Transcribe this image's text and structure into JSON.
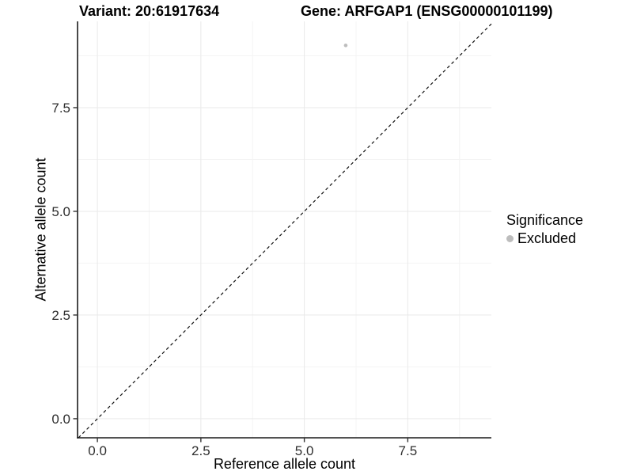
{
  "titles": {
    "variant": "Variant: 20:61917634",
    "gene": "Gene: ARFGAP1 (ENSG00000101199)"
  },
  "legend": {
    "title": "Significance",
    "items": [
      {
        "label": "Excluded",
        "color": "#bdbdbd"
      }
    ]
  },
  "chart_data": {
    "type": "scatter",
    "title": "Variant: 20:61917634   Gene: ARFGAP1 (ENSG00000101199)",
    "xlabel": "Reference allele count",
    "ylabel": "Alternative allele count",
    "points": [
      {
        "x": 6,
        "y": 9,
        "series": "Excluded"
      }
    ],
    "series": [
      {
        "name": "Excluded",
        "color": "#bdbdbd"
      }
    ],
    "reference_line": {
      "style": "dashed",
      "intercept": 0,
      "slope": 1
    },
    "xlim": [
      -0.48,
      9.52
    ],
    "ylim": [
      -0.46,
      9.58
    ],
    "x_ticks": [
      0,
      2.5,
      5,
      7.5
    ],
    "y_ticks": [
      0,
      2.5,
      5,
      7.5
    ],
    "x_tick_labels": [
      "0.0",
      "2.5",
      "5.0",
      "7.5"
    ],
    "y_tick_labels": [
      "0.0",
      "2.5",
      "5.0",
      "7.5"
    ],
    "x_minor_ticks": [
      1.25,
      3.75,
      6.25,
      8.75
    ],
    "y_minor_ticks": [
      1.25,
      3.75,
      6.25,
      8.75
    ],
    "grid": true,
    "legend_position": "right",
    "point_radius_px": 2.3,
    "colors": {
      "point": "#bdbdbd",
      "grid_major": "#e9e9e9",
      "grid_minor": "#f4f4f4",
      "axis_line": "#1a1a1a",
      "tick_mark": "#333333",
      "tick_label": "#2e2e2e",
      "reference_line": "#111111",
      "background": "#ffffff"
    }
  }
}
